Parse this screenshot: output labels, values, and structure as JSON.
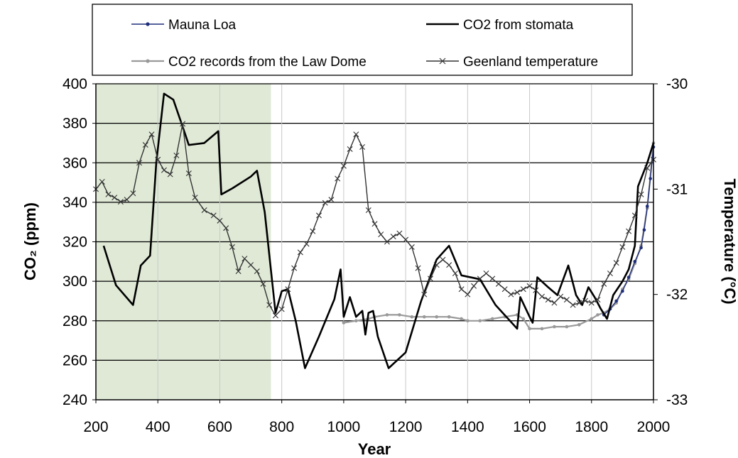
{
  "chart_data": {
    "type": "line",
    "x_label": "Year",
    "y_left_label": "CO₂ (ppm)",
    "y_right_label": "Temperature (°C)",
    "x_range": [
      200,
      2000
    ],
    "x_ticks": [
      200,
      400,
      600,
      800,
      1000,
      1200,
      1400,
      1600,
      1800,
      2000
    ],
    "y_left_range": [
      240,
      400
    ],
    "y_left_ticks": [
      240,
      260,
      280,
      300,
      320,
      340,
      360,
      380,
      400
    ],
    "y_right_range": [
      -33,
      -30
    ],
    "y_right_ticks": [
      -33,
      -32,
      -31,
      -30
    ],
    "shaded_region": {
      "x_start": 200,
      "x_end": 765,
      "color": "#dfe9d6"
    },
    "grid": {
      "horizontal": true,
      "vertical": true
    },
    "legend_position": "top",
    "series": [
      {
        "name": "Mauna Loa",
        "axis": "left",
        "color": "#1f2e7a",
        "marker": "dot",
        "points": [
          [
            1840,
            283
          ],
          [
            1860,
            286
          ],
          [
            1880,
            290
          ],
          [
            1900,
            295
          ],
          [
            1920,
            302
          ],
          [
            1940,
            310
          ],
          [
            1960,
            317
          ],
          [
            1970,
            326
          ],
          [
            1980,
            338
          ],
          [
            1990,
            352
          ],
          [
            2000,
            368
          ]
        ]
      },
      {
        "name": "CO2 from stomata",
        "axis": "left",
        "color": "#000000",
        "marker": "none",
        "points": [
          [
            225,
            318
          ],
          [
            265,
            298
          ],
          [
            320,
            288
          ],
          [
            345,
            308
          ],
          [
            375,
            313
          ],
          [
            395,
            360
          ],
          [
            420,
            395
          ],
          [
            450,
            392
          ],
          [
            485,
            376
          ],
          [
            500,
            369
          ],
          [
            550,
            370
          ],
          [
            595,
            376
          ],
          [
            605,
            344
          ],
          [
            640,
            347
          ],
          [
            700,
            353
          ],
          [
            720,
            356
          ],
          [
            745,
            335
          ],
          [
            780,
            284
          ],
          [
            800,
            295
          ],
          [
            820,
            296
          ],
          [
            845,
            280
          ],
          [
            875,
            256
          ],
          [
            920,
            272
          ],
          [
            970,
            291
          ],
          [
            990,
            306
          ],
          [
            1000,
            282
          ],
          [
            1020,
            292
          ],
          [
            1040,
            282
          ],
          [
            1060,
            285
          ],
          [
            1070,
            273
          ],
          [
            1080,
            284
          ],
          [
            1095,
            285
          ],
          [
            1110,
            272
          ],
          [
            1145,
            256
          ],
          [
            1200,
            264
          ],
          [
            1250,
            290
          ],
          [
            1300,
            311
          ],
          [
            1340,
            318
          ],
          [
            1380,
            303
          ],
          [
            1440,
            301
          ],
          [
            1490,
            288
          ],
          [
            1560,
            276
          ],
          [
            1570,
            292
          ],
          [
            1600,
            282
          ],
          [
            1610,
            279
          ],
          [
            1625,
            302
          ],
          [
            1660,
            297
          ],
          [
            1690,
            293
          ],
          [
            1725,
            308
          ],
          [
            1750,
            293
          ],
          [
            1770,
            288
          ],
          [
            1790,
            297
          ],
          [
            1810,
            292
          ],
          [
            1830,
            286
          ],
          [
            1850,
            281
          ],
          [
            1870,
            293
          ],
          [
            1900,
            300
          ],
          [
            1920,
            306
          ],
          [
            1940,
            318
          ],
          [
            1950,
            348
          ],
          [
            1980,
            360
          ],
          [
            2000,
            370
          ]
        ]
      },
      {
        "name": "CO2 records from the Law Dome",
        "axis": "left",
        "color": "#999999",
        "marker": "dot",
        "points": [
          [
            1000,
            279
          ],
          [
            1040,
            280
          ],
          [
            1080,
            281
          ],
          [
            1100,
            282
          ],
          [
            1140,
            283
          ],
          [
            1180,
            283
          ],
          [
            1220,
            282
          ],
          [
            1260,
            282
          ],
          [
            1300,
            282
          ],
          [
            1340,
            282
          ],
          [
            1380,
            281
          ],
          [
            1400,
            280
          ],
          [
            1440,
            280
          ],
          [
            1480,
            281
          ],
          [
            1520,
            282
          ],
          [
            1560,
            283
          ],
          [
            1580,
            281
          ],
          [
            1600,
            276
          ],
          [
            1640,
            276
          ],
          [
            1680,
            277
          ],
          [
            1720,
            277
          ],
          [
            1760,
            278
          ],
          [
            1800,
            281
          ],
          [
            1820,
            283
          ],
          [
            1840,
            284
          ],
          [
            1860,
            286
          ],
          [
            1880,
            289
          ],
          [
            1900,
            296
          ],
          [
            1920,
            301
          ],
          [
            1940,
            309
          ],
          [
            1960,
            318
          ],
          [
            1980,
            337
          ],
          [
            2000,
            370
          ]
        ]
      },
      {
        "name": "Geenland temperature",
        "axis": "right",
        "color": "#333333",
        "marker": "x",
        "points": [
          [
            200,
            -31.0
          ],
          [
            220,
            -30.93
          ],
          [
            240,
            -31.05
          ],
          [
            260,
            -31.08
          ],
          [
            280,
            -31.12
          ],
          [
            300,
            -31.1
          ],
          [
            320,
            -31.04
          ],
          [
            340,
            -30.75
          ],
          [
            360,
            -30.58
          ],
          [
            380,
            -30.48
          ],
          [
            400,
            -30.72
          ],
          [
            420,
            -30.82
          ],
          [
            440,
            -30.86
          ],
          [
            460,
            -30.68
          ],
          [
            480,
            -30.38
          ],
          [
            500,
            -30.85
          ],
          [
            520,
            -31.08
          ],
          [
            550,
            -31.2
          ],
          [
            580,
            -31.25
          ],
          [
            600,
            -31.3
          ],
          [
            620,
            -31.37
          ],
          [
            640,
            -31.55
          ],
          [
            660,
            -31.78
          ],
          [
            680,
            -31.66
          ],
          [
            700,
            -31.72
          ],
          [
            720,
            -31.78
          ],
          [
            740,
            -31.9
          ],
          [
            760,
            -32.1
          ],
          [
            780,
            -32.2
          ],
          [
            800,
            -32.14
          ],
          [
            820,
            -31.95
          ],
          [
            840,
            -31.75
          ],
          [
            860,
            -31.6
          ],
          [
            880,
            -31.52
          ],
          [
            900,
            -31.4
          ],
          [
            920,
            -31.25
          ],
          [
            940,
            -31.13
          ],
          [
            960,
            -31.1
          ],
          [
            980,
            -30.9
          ],
          [
            1000,
            -30.78
          ],
          [
            1020,
            -30.62
          ],
          [
            1040,
            -30.48
          ],
          [
            1060,
            -30.6
          ],
          [
            1080,
            -31.2
          ],
          [
            1100,
            -31.33
          ],
          [
            1120,
            -31.43
          ],
          [
            1140,
            -31.5
          ],
          [
            1160,
            -31.45
          ],
          [
            1180,
            -31.42
          ],
          [
            1200,
            -31.48
          ],
          [
            1220,
            -31.55
          ],
          [
            1240,
            -31.75
          ],
          [
            1260,
            -32.0
          ],
          [
            1280,
            -31.85
          ],
          [
            1300,
            -31.72
          ],
          [
            1320,
            -31.67
          ],
          [
            1340,
            -31.72
          ],
          [
            1360,
            -31.8
          ],
          [
            1380,
            -31.95
          ],
          [
            1400,
            -32.0
          ],
          [
            1420,
            -31.92
          ],
          [
            1440,
            -31.85
          ],
          [
            1460,
            -31.8
          ],
          [
            1480,
            -31.85
          ],
          [
            1500,
            -31.9
          ],
          [
            1520,
            -31.95
          ],
          [
            1540,
            -32.0
          ],
          [
            1560,
            -31.98
          ],
          [
            1580,
            -31.95
          ],
          [
            1600,
            -31.92
          ],
          [
            1620,
            -31.96
          ],
          [
            1640,
            -32.02
          ],
          [
            1660,
            -32.05
          ],
          [
            1680,
            -32.08
          ],
          [
            1700,
            -32.02
          ],
          [
            1720,
            -32.05
          ],
          [
            1740,
            -32.1
          ],
          [
            1760,
            -32.08
          ],
          [
            1780,
            -32.06
          ],
          [
            1800,
            -32.08
          ],
          [
            1820,
            -32.05
          ],
          [
            1840,
            -31.9
          ],
          [
            1860,
            -31.8
          ],
          [
            1880,
            -31.7
          ],
          [
            1900,
            -31.55
          ],
          [
            1920,
            -31.4
          ],
          [
            1940,
            -31.25
          ],
          [
            1960,
            -31.05
          ],
          [
            1980,
            -30.8
          ],
          [
            2000,
            -30.72
          ]
        ]
      }
    ]
  }
}
